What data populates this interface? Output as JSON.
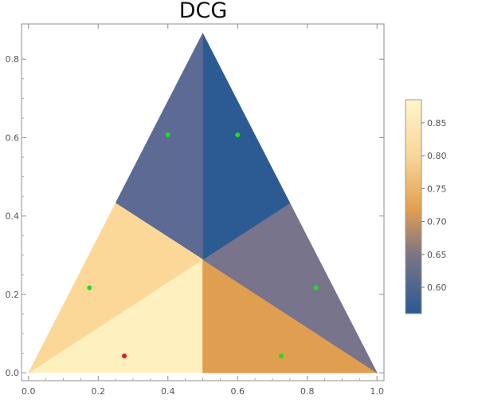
{
  "chart_data": {
    "type": "heatmap",
    "title": "DCG",
    "x_ticks": [
      "0.0",
      "0.2",
      "0.4",
      "0.6",
      "0.8",
      "1.0"
    ],
    "y_ticks": [
      "0.0",
      "0.2",
      "0.4",
      "0.6",
      "0.8"
    ],
    "xlim": [
      -0.02,
      1.02
    ],
    "ylim": [
      -0.02,
      0.89
    ],
    "simplex_vertices": [
      [
        0,
        0
      ],
      [
        1,
        0
      ],
      [
        0.5,
        0.866
      ]
    ],
    "center": [
      0.5,
      0.289
    ],
    "regions": [
      {
        "name": "region-bottom-left",
        "value": 0.87,
        "color": "#fff0c0",
        "polygon": [
          [
            0,
            0
          ],
          [
            0.5,
            0
          ],
          [
            0.5,
            0.289
          ]
        ]
      },
      {
        "name": "region-bottom-right",
        "value": 0.72,
        "color": "#e09e50",
        "polygon": [
          [
            0.5,
            0
          ],
          [
            1,
            0
          ],
          [
            0.5,
            0.289
          ]
        ]
      },
      {
        "name": "region-right",
        "value": 0.655,
        "color": "#78748c",
        "polygon": [
          [
            1,
            0
          ],
          [
            0.75,
            0.433
          ],
          [
            0.5,
            0.289
          ]
        ]
      },
      {
        "name": "region-top-right",
        "value": 0.575,
        "color": "#2c5b94",
        "polygon": [
          [
            0.75,
            0.433
          ],
          [
            0.5,
            0.866
          ],
          [
            0.5,
            0.289
          ]
        ]
      },
      {
        "name": "region-top-left",
        "value": 0.625,
        "color": "#5c6a94",
        "polygon": [
          [
            0.5,
            0.866
          ],
          [
            0.25,
            0.433
          ],
          [
            0.5,
            0.289
          ]
        ]
      },
      {
        "name": "region-left",
        "value": 0.845,
        "color": "#fcd898",
        "polygon": [
          [
            0.25,
            0.433
          ],
          [
            0,
            0
          ],
          [
            0.5,
            0.289
          ]
        ]
      }
    ],
    "points": [
      {
        "x": 0.4,
        "y": 0.607,
        "color": "#22dd22"
      },
      {
        "x": 0.6,
        "y": 0.607,
        "color": "#22dd22"
      },
      {
        "x": 0.175,
        "y": 0.217,
        "color": "#22dd22"
      },
      {
        "x": 0.825,
        "y": 0.217,
        "color": "#22dd22"
      },
      {
        "x": 0.725,
        "y": 0.043,
        "color": "#22dd22"
      },
      {
        "x": 0.275,
        "y": 0.043,
        "color": "#e21b1b"
      }
    ],
    "colorbar": {
      "min": 0.56,
      "max": 0.885,
      "ticks": [
        "0.60",
        "0.65",
        "0.70",
        "0.75",
        "0.80",
        "0.85"
      ],
      "gradient": [
        {
          "value": 0.56,
          "color": "#2a5a94"
        },
        {
          "value": 0.65,
          "color": "#7d7485"
        },
        {
          "value": 0.72,
          "color": "#e3a050"
        },
        {
          "value": 0.8,
          "color": "#f9d69a"
        },
        {
          "value": 0.885,
          "color": "#fff5ca"
        }
      ]
    },
    "grid": false
  }
}
